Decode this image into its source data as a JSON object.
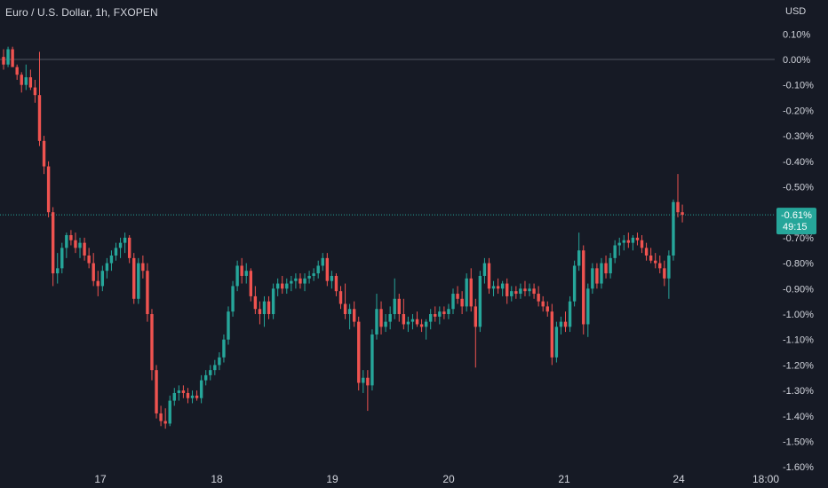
{
  "header": {
    "symbol_title": "Euro / U.S. Dollar, 1h, FXOPEN",
    "currency": "USD"
  },
  "colors": {
    "background": "#161a25",
    "up": "#26a69a",
    "down": "#ef5350",
    "text": "#d1d4dc",
    "zero_line": "#787b86"
  },
  "price_label": {
    "value": "-0.61%",
    "countdown": "49:15"
  },
  "chart_data": {
    "type": "candlestick",
    "title": "Euro / U.S. Dollar, 1h, FXOPEN",
    "ylabel": "USD",
    "y_scale": "percent",
    "ylim": [
      -1.6,
      0.15
    ],
    "y_ticks": [
      "0.10%",
      "0.00%",
      "-0.10%",
      "-0.20%",
      "-0.30%",
      "-0.40%",
      "-0.50%",
      "-0.70%",
      "-0.80%",
      "-0.90%",
      "-1.00%",
      "-1.10%",
      "-1.20%",
      "-1.30%",
      "-1.40%",
      "-1.50%",
      "-1.60%"
    ],
    "x_ticks": [
      "17",
      "18",
      "19",
      "20",
      "21",
      "24",
      "18:00"
    ],
    "last_value": -0.61,
    "grid": false,
    "candles": [
      {
        "o": 0.01,
        "h": 0.04,
        "l": -0.04,
        "c": -0.02
      },
      {
        "o": -0.02,
        "h": 0.05,
        "l": -0.03,
        "c": 0.04
      },
      {
        "o": 0.04,
        "h": 0.05,
        "l": -0.02,
        "c": -0.03
      },
      {
        "o": -0.03,
        "h": -0.02,
        "l": -0.08,
        "c": -0.06
      },
      {
        "o": -0.06,
        "h": -0.05,
        "l": -0.13,
        "c": -0.1
      },
      {
        "o": -0.1,
        "h": -0.02,
        "l": -0.12,
        "c": -0.07
      },
      {
        "o": -0.07,
        "h": -0.04,
        "l": -0.12,
        "c": -0.11
      },
      {
        "o": -0.11,
        "h": -0.08,
        "l": -0.17,
        "c": -0.14
      },
      {
        "o": -0.14,
        "h": 0.03,
        "l": -0.34,
        "c": -0.32
      },
      {
        "o": -0.32,
        "h": -0.3,
        "l": -0.45,
        "c": -0.42
      },
      {
        "o": -0.42,
        "h": -0.4,
        "l": -0.62,
        "c": -0.6
      },
      {
        "o": -0.6,
        "h": -0.58,
        "l": -0.89,
        "c": -0.84
      },
      {
        "o": -0.84,
        "h": -0.76,
        "l": -0.88,
        "c": -0.82
      },
      {
        "o": -0.82,
        "h": -0.72,
        "l": -0.84,
        "c": -0.74
      },
      {
        "o": -0.74,
        "h": -0.68,
        "l": -0.78,
        "c": -0.69
      },
      {
        "o": -0.69,
        "h": -0.67,
        "l": -0.73,
        "c": -0.71
      },
      {
        "o": -0.71,
        "h": -0.68,
        "l": -0.76,
        "c": -0.74
      },
      {
        "o": -0.74,
        "h": -0.7,
        "l": -0.78,
        "c": -0.72
      },
      {
        "o": -0.72,
        "h": -0.7,
        "l": -0.79,
        "c": -0.77
      },
      {
        "o": -0.77,
        "h": -0.74,
        "l": -0.82,
        "c": -0.8
      },
      {
        "o": -0.8,
        "h": -0.76,
        "l": -0.89,
        "c": -0.87
      },
      {
        "o": -0.87,
        "h": -0.83,
        "l": -0.93,
        "c": -0.89
      },
      {
        "o": -0.89,
        "h": -0.81,
        "l": -0.91,
        "c": -0.83
      },
      {
        "o": -0.83,
        "h": -0.78,
        "l": -0.86,
        "c": -0.8
      },
      {
        "o": -0.8,
        "h": -0.75,
        "l": -0.83,
        "c": -0.77
      },
      {
        "o": -0.77,
        "h": -0.72,
        "l": -0.79,
        "c": -0.74
      },
      {
        "o": -0.74,
        "h": -0.7,
        "l": -0.78,
        "c": -0.72
      },
      {
        "o": -0.72,
        "h": -0.68,
        "l": -0.76,
        "c": -0.7
      },
      {
        "o": -0.7,
        "h": -0.69,
        "l": -0.8,
        "c": -0.78
      },
      {
        "o": -0.78,
        "h": -0.76,
        "l": -0.96,
        "c": -0.94
      },
      {
        "o": -0.94,
        "h": -0.78,
        "l": -0.96,
        "c": -0.8
      },
      {
        "o": -0.8,
        "h": -0.77,
        "l": -0.86,
        "c": -0.83
      },
      {
        "o": -0.83,
        "h": -0.8,
        "l": -1.03,
        "c": -1.0
      },
      {
        "o": -1.0,
        "h": -0.98,
        "l": -1.26,
        "c": -1.22
      },
      {
        "o": -1.22,
        "h": -1.2,
        "l": -1.41,
        "c": -1.39
      },
      {
        "o": -1.39,
        "h": -1.36,
        "l": -1.44,
        "c": -1.42
      },
      {
        "o": -1.42,
        "h": -1.37,
        "l": -1.45,
        "c": -1.43
      },
      {
        "o": -1.43,
        "h": -1.32,
        "l": -1.44,
        "c": -1.34
      },
      {
        "o": -1.34,
        "h": -1.29,
        "l": -1.36,
        "c": -1.31
      },
      {
        "o": -1.31,
        "h": -1.28,
        "l": -1.34,
        "c": -1.3
      },
      {
        "o": -1.3,
        "h": -1.28,
        "l": -1.33,
        "c": -1.31
      },
      {
        "o": -1.31,
        "h": -1.29,
        "l": -1.35,
        "c": -1.33
      },
      {
        "o": -1.33,
        "h": -1.3,
        "l": -1.35,
        "c": -1.32
      },
      {
        "o": -1.32,
        "h": -1.3,
        "l": -1.34,
        "c": -1.33
      },
      {
        "o": -1.33,
        "h": -1.24,
        "l": -1.35,
        "c": -1.26
      },
      {
        "o": -1.26,
        "h": -1.22,
        "l": -1.28,
        "c": -1.24
      },
      {
        "o": -1.24,
        "h": -1.2,
        "l": -1.26,
        "c": -1.22
      },
      {
        "o": -1.22,
        "h": -1.18,
        "l": -1.24,
        "c": -1.2
      },
      {
        "o": -1.2,
        "h": -1.15,
        "l": -1.22,
        "c": -1.17
      },
      {
        "o": -1.17,
        "h": -1.08,
        "l": -1.19,
        "c": -1.1
      },
      {
        "o": -1.1,
        "h": -0.97,
        "l": -1.12,
        "c": -0.99
      },
      {
        "o": -0.99,
        "h": -0.87,
        "l": -1.01,
        "c": -0.89
      },
      {
        "o": -0.89,
        "h": -0.79,
        "l": -0.91,
        "c": -0.81
      },
      {
        "o": -0.81,
        "h": -0.78,
        "l": -0.88,
        "c": -0.85
      },
      {
        "o": -0.85,
        "h": -0.8,
        "l": -0.88,
        "c": -0.83
      },
      {
        "o": -0.83,
        "h": -0.82,
        "l": -0.95,
        "c": -0.93
      },
      {
        "o": -0.93,
        "h": -0.89,
        "l": -1.0,
        "c": -0.98
      },
      {
        "o": -0.98,
        "h": -0.95,
        "l": -1.04,
        "c": -1.0
      },
      {
        "o": -1.0,
        "h": -0.93,
        "l": -1.05,
        "c": -0.95
      },
      {
        "o": -0.95,
        "h": -0.93,
        "l": -1.02,
        "c": -1.0
      },
      {
        "o": -1.0,
        "h": -0.88,
        "l": -1.02,
        "c": -0.9
      },
      {
        "o": -0.9,
        "h": -0.86,
        "l": -0.93,
        "c": -0.88
      },
      {
        "o": -0.88,
        "h": -0.85,
        "l": -0.92,
        "c": -0.9
      },
      {
        "o": -0.9,
        "h": -0.86,
        "l": -0.92,
        "c": -0.88
      },
      {
        "o": -0.88,
        "h": -0.85,
        "l": -0.91,
        "c": -0.87
      },
      {
        "o": -0.87,
        "h": -0.84,
        "l": -0.9,
        "c": -0.86
      },
      {
        "o": -0.86,
        "h": -0.84,
        "l": -0.9,
        "c": -0.88
      },
      {
        "o": -0.88,
        "h": -0.84,
        "l": -0.91,
        "c": -0.86
      },
      {
        "o": -0.86,
        "h": -0.83,
        "l": -0.88,
        "c": -0.85
      },
      {
        "o": -0.85,
        "h": -0.82,
        "l": -0.87,
        "c": -0.84
      },
      {
        "o": -0.84,
        "h": -0.79,
        "l": -0.86,
        "c": -0.81
      },
      {
        "o": -0.81,
        "h": -0.76,
        "l": -0.83,
        "c": -0.78
      },
      {
        "o": -0.78,
        "h": -0.76,
        "l": -0.89,
        "c": -0.87
      },
      {
        "o": -0.87,
        "h": -0.83,
        "l": -0.9,
        "c": -0.85
      },
      {
        "o": -0.85,
        "h": -0.84,
        "l": -0.93,
        "c": -0.91
      },
      {
        "o": -0.91,
        "h": -0.89,
        "l": -0.98,
        "c": -0.96
      },
      {
        "o": -0.96,
        "h": -0.88,
        "l": -1.02,
        "c": -1.0
      },
      {
        "o": -1.0,
        "h": -0.96,
        "l": -1.06,
        "c": -0.98
      },
      {
        "o": -0.98,
        "h": -0.95,
        "l": -1.05,
        "c": -1.03
      },
      {
        "o": -1.03,
        "h": -1.01,
        "l": -1.3,
        "c": -1.27
      },
      {
        "o": -1.27,
        "h": -1.22,
        "l": -1.31,
        "c": -1.25
      },
      {
        "o": -1.25,
        "h": -1.22,
        "l": -1.38,
        "c": -1.28
      },
      {
        "o": -1.28,
        "h": -1.06,
        "l": -1.3,
        "c": -1.08
      },
      {
        "o": -1.08,
        "h": -0.92,
        "l": -1.1,
        "c": -0.98
      },
      {
        "o": -0.98,
        "h": -0.95,
        "l": -1.08,
        "c": -1.05
      },
      {
        "o": -1.05,
        "h": -1.0,
        "l": -1.07,
        "c": -1.03
      },
      {
        "o": -1.03,
        "h": -0.97,
        "l": -1.06,
        "c": -1.0
      },
      {
        "o": -1.0,
        "h": -0.86,
        "l": -1.02,
        "c": -0.94
      },
      {
        "o": -0.94,
        "h": -0.92,
        "l": -1.03,
        "c": -1.0
      },
      {
        "o": -1.0,
        "h": -0.94,
        "l": -1.06,
        "c": -1.04
      },
      {
        "o": -1.04,
        "h": -1.01,
        "l": -1.07,
        "c": -1.03
      },
      {
        "o": -1.03,
        "h": -1.0,
        "l": -1.06,
        "c": -1.02
      },
      {
        "o": -1.02,
        "h": -0.99,
        "l": -1.05,
        "c": -1.04
      },
      {
        "o": -1.04,
        "h": -1.02,
        "l": -1.07,
        "c": -1.05
      },
      {
        "o": -1.05,
        "h": -1.02,
        "l": -1.1,
        "c": -1.03
      },
      {
        "o": -1.03,
        "h": -0.98,
        "l": -1.06,
        "c": -1.0
      },
      {
        "o": -1.0,
        "h": -0.97,
        "l": -1.03,
        "c": -1.01
      },
      {
        "o": -1.01,
        "h": -0.97,
        "l": -1.04,
        "c": -0.99
      },
      {
        "o": -0.99,
        "h": -0.97,
        "l": -1.02,
        "c": -1.0
      },
      {
        "o": -1.0,
        "h": -0.96,
        "l": -1.02,
        "c": -0.98
      },
      {
        "o": -0.98,
        "h": -0.9,
        "l": -1.0,
        "c": -0.92
      },
      {
        "o": -0.92,
        "h": -0.89,
        "l": -0.96,
        "c": -0.94
      },
      {
        "o": -0.94,
        "h": -0.91,
        "l": -1.0,
        "c": -0.97
      },
      {
        "o": -0.97,
        "h": -0.84,
        "l": -0.99,
        "c": -0.86
      },
      {
        "o": -0.86,
        "h": -0.82,
        "l": -0.99,
        "c": -0.97
      },
      {
        "o": -0.97,
        "h": -0.94,
        "l": -1.21,
        "c": -1.05
      },
      {
        "o": -1.05,
        "h": -0.83,
        "l": -1.07,
        "c": -0.85
      },
      {
        "o": -0.85,
        "h": -0.78,
        "l": -0.88,
        "c": -0.8
      },
      {
        "o": -0.8,
        "h": -0.78,
        "l": -0.92,
        "c": -0.9
      },
      {
        "o": -0.9,
        "h": -0.87,
        "l": -0.93,
        "c": -0.89
      },
      {
        "o": -0.89,
        "h": -0.86,
        "l": -0.92,
        "c": -0.9
      },
      {
        "o": -0.9,
        "h": -0.87,
        "l": -0.93,
        "c": -0.88
      },
      {
        "o": -0.88,
        "h": -0.86,
        "l": -0.96,
        "c": -0.93
      },
      {
        "o": -0.93,
        "h": -0.89,
        "l": -0.95,
        "c": -0.91
      },
      {
        "o": -0.91,
        "h": -0.89,
        "l": -0.94,
        "c": -0.92
      },
      {
        "o": -0.92,
        "h": -0.88,
        "l": -0.94,
        "c": -0.9
      },
      {
        "o": -0.9,
        "h": -0.87,
        "l": -0.93,
        "c": -0.91
      },
      {
        "o": -0.91,
        "h": -0.88,
        "l": -0.93,
        "c": -0.9
      },
      {
        "o": -0.9,
        "h": -0.88,
        "l": -0.94,
        "c": -0.92
      },
      {
        "o": -0.92,
        "h": -0.89,
        "l": -0.97,
        "c": -0.95
      },
      {
        "o": -0.95,
        "h": -0.93,
        "l": -0.99,
        "c": -0.97
      },
      {
        "o": -0.97,
        "h": -0.95,
        "l": -1.01,
        "c": -0.99
      },
      {
        "o": -0.99,
        "h": -0.96,
        "l": -1.2,
        "c": -1.17
      },
      {
        "o": -1.17,
        "h": -1.03,
        "l": -1.19,
        "c": -1.05
      },
      {
        "o": -1.05,
        "h": -1.01,
        "l": -1.08,
        "c": -1.03
      },
      {
        "o": -1.03,
        "h": -0.99,
        "l": -1.07,
        "c": -1.05
      },
      {
        "o": -1.05,
        "h": -0.93,
        "l": -1.07,
        "c": -0.95
      },
      {
        "o": -0.95,
        "h": -0.79,
        "l": -0.97,
        "c": -0.81
      },
      {
        "o": -0.81,
        "h": -0.68,
        "l": -0.83,
        "c": -0.75
      },
      {
        "o": -0.75,
        "h": -0.73,
        "l": -1.08,
        "c": -1.04
      },
      {
        "o": -1.04,
        "h": -0.88,
        "l": -1.09,
        "c": -0.9
      },
      {
        "o": -0.9,
        "h": -0.8,
        "l": -0.92,
        "c": -0.82
      },
      {
        "o": -0.82,
        "h": -0.8,
        "l": -0.9,
        "c": -0.88
      },
      {
        "o": -0.88,
        "h": -0.78,
        "l": -0.9,
        "c": -0.8
      },
      {
        "o": -0.8,
        "h": -0.77,
        "l": -0.86,
        "c": -0.84
      },
      {
        "o": -0.84,
        "h": -0.76,
        "l": -0.86,
        "c": -0.78
      },
      {
        "o": -0.78,
        "h": -0.71,
        "l": -0.8,
        "c": -0.73
      },
      {
        "o": -0.73,
        "h": -0.7,
        "l": -0.77,
        "c": -0.72
      },
      {
        "o": -0.72,
        "h": -0.69,
        "l": -0.75,
        "c": -0.71
      },
      {
        "o": -0.71,
        "h": -0.68,
        "l": -0.74,
        "c": -0.72
      },
      {
        "o": -0.72,
        "h": -0.69,
        "l": -0.75,
        "c": -0.7
      },
      {
        "o": -0.7,
        "h": -0.68,
        "l": -0.73,
        "c": -0.71
      },
      {
        "o": -0.71,
        "h": -0.69,
        "l": -0.76,
        "c": -0.74
      },
      {
        "o": -0.74,
        "h": -0.72,
        "l": -0.79,
        "c": -0.77
      },
      {
        "o": -0.77,
        "h": -0.74,
        "l": -0.8,
        "c": -0.79
      },
      {
        "o": -0.79,
        "h": -0.76,
        "l": -0.82,
        "c": -0.8
      },
      {
        "o": -0.8,
        "h": -0.77,
        "l": -0.84,
        "c": -0.82
      },
      {
        "o": -0.82,
        "h": -0.79,
        "l": -0.89,
        "c": -0.86
      },
      {
        "o": -0.86,
        "h": -0.75,
        "l": -0.94,
        "c": -0.77
      },
      {
        "o": -0.77,
        "h": -0.55,
        "l": -0.79,
        "c": -0.56
      },
      {
        "o": -0.56,
        "h": -0.45,
        "l": -0.62,
        "c": -0.6
      },
      {
        "o": -0.6,
        "h": -0.57,
        "l": -0.64,
        "c": -0.61
      }
    ]
  }
}
